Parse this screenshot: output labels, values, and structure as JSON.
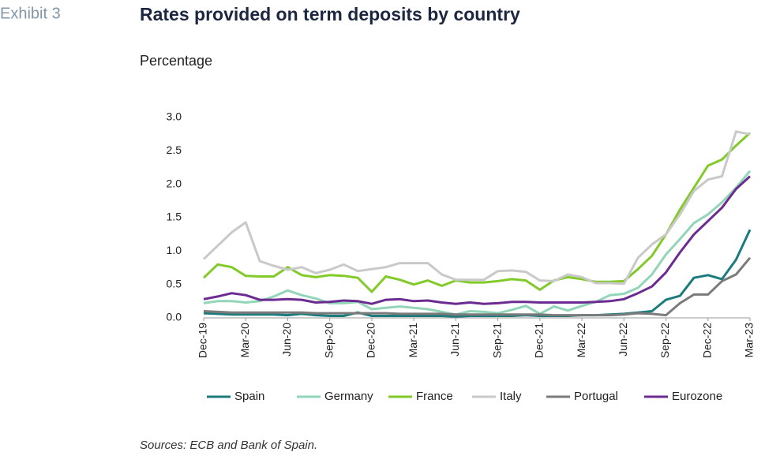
{
  "exhibit": "Exhibit 3",
  "sources": "Sources: ECB and Bank of Spain.",
  "chart_data": {
    "type": "line",
    "title": "Rates provided on term deposits by country",
    "subtitle": "Percentage",
    "categories": [
      "Dec-19",
      null,
      null,
      "Mar-20",
      null,
      null,
      "Jun-20",
      null,
      null,
      "Sep-20",
      null,
      null,
      "Dec-20",
      null,
      null,
      "Mar-21",
      null,
      null,
      "Jun-21",
      null,
      null,
      "Sep-21",
      null,
      null,
      "Dec-21",
      null,
      null,
      "Mar-22",
      null,
      null,
      "Jun-22",
      null,
      null,
      "Sep-22",
      null,
      null,
      "Dec-22",
      null,
      null,
      "Mar-23"
    ],
    "ylim": [
      0,
      3
    ],
    "yticks": [
      {
        "value": 0,
        "label": "0.0"
      },
      0.5,
      {
        "value": 1,
        "label": "1.0"
      },
      1.5,
      {
        "value": 2,
        "label": "2.0"
      },
      2.5,
      {
        "value": 3,
        "label": "3.0"
      }
    ],
    "grid": false,
    "legend": "bottom",
    "series": [
      {
        "name": "Spain",
        "color": "#1b7b7d",
        "values": [
          0.07,
          0.06,
          0.05,
          0.05,
          0.05,
          0.05,
          0.04,
          0.06,
          0.04,
          0.03,
          0.03,
          0.08,
          0.03,
          0.03,
          0.03,
          0.03,
          0.03,
          0.03,
          0.02,
          0.03,
          0.03,
          0.03,
          0.03,
          0.04,
          0.03,
          0.03,
          0.03,
          0.04,
          0.04,
          0.05,
          0.06,
          0.08,
          0.1,
          0.27,
          0.33,
          0.6,
          0.64,
          0.58,
          0.87,
          1.32
        ]
      },
      {
        "name": "Germany",
        "color": "#92d5b8",
        "values": [
          0.22,
          0.25,
          0.25,
          0.23,
          0.25,
          0.32,
          0.41,
          0.34,
          0.29,
          0.22,
          0.22,
          0.24,
          0.13,
          0.15,
          0.17,
          0.15,
          0.13,
          0.09,
          0.05,
          0.1,
          0.09,
          0.07,
          0.12,
          0.18,
          0.06,
          0.17,
          0.11,
          0.18,
          0.24,
          0.34,
          0.36,
          0.45,
          0.65,
          0.95,
          1.18,
          1.42,
          1.55,
          1.73,
          1.95,
          2.2
        ]
      },
      {
        "name": "France",
        "color": "#82c92a",
        "values": [
          0.6,
          0.8,
          0.76,
          0.63,
          0.62,
          0.62,
          0.76,
          0.64,
          0.61,
          0.64,
          0.63,
          0.6,
          0.39,
          0.62,
          0.57,
          0.5,
          0.56,
          0.48,
          0.56,
          0.53,
          0.53,
          0.55,
          0.58,
          0.56,
          0.42,
          0.56,
          0.61,
          0.58,
          0.54,
          0.54,
          0.55,
          0.73,
          0.93,
          1.25,
          1.62,
          1.95,
          2.28,
          2.37,
          2.58,
          2.77
        ]
      },
      {
        "name": "Italy",
        "color": "#c9c9c9",
        "values": [
          0.88,
          1.08,
          1.28,
          1.43,
          0.85,
          0.78,
          0.72,
          0.76,
          0.67,
          0.72,
          0.8,
          0.7,
          0.73,
          0.76,
          0.82,
          0.82,
          0.82,
          0.65,
          0.57,
          0.57,
          0.57,
          0.7,
          0.71,
          0.69,
          0.56,
          0.55,
          0.65,
          0.61,
          0.52,
          0.52,
          0.51,
          0.9,
          1.1,
          1.25,
          1.55,
          1.9,
          2.07,
          2.12,
          2.79,
          2.75
        ]
      },
      {
        "name": "Portugal",
        "color": "#7b7b7b",
        "values": [
          0.1,
          0.09,
          0.08,
          0.08,
          0.08,
          0.08,
          0.08,
          0.08,
          0.07,
          0.07,
          0.07,
          0.07,
          0.07,
          0.07,
          0.06,
          0.06,
          0.06,
          0.06,
          0.05,
          0.05,
          0.05,
          0.05,
          0.05,
          0.05,
          0.05,
          0.04,
          0.04,
          0.04,
          0.04,
          0.04,
          0.05,
          0.07,
          0.06,
          0.04,
          0.22,
          0.35,
          0.35,
          0.55,
          0.65,
          0.9
        ]
      },
      {
        "name": "Eurozone",
        "color": "#6b2b90",
        "values": [
          0.28,
          0.32,
          0.37,
          0.34,
          0.27,
          0.27,
          0.28,
          0.27,
          0.23,
          0.24,
          0.26,
          0.25,
          0.21,
          0.27,
          0.28,
          0.25,
          0.26,
          0.23,
          0.21,
          0.23,
          0.21,
          0.22,
          0.24,
          0.24,
          0.23,
          0.23,
          0.23,
          0.23,
          0.24,
          0.25,
          0.28,
          0.37,
          0.47,
          0.68,
          0.98,
          1.25,
          1.45,
          1.65,
          1.93,
          2.12
        ]
      }
    ]
  }
}
